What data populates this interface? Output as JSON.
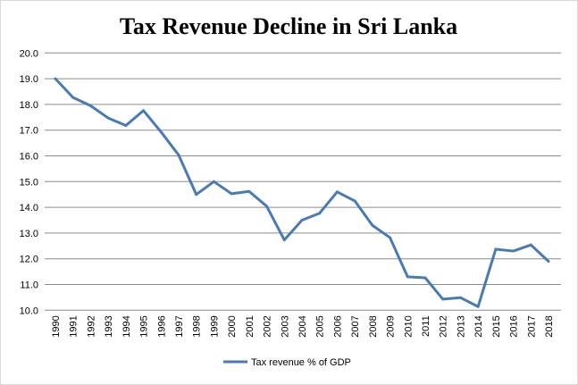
{
  "chart_data": {
    "type": "line",
    "title": "Tax Revenue Decline in Sri Lanka",
    "xlabel": "",
    "ylabel": "",
    "ylim": [
      10.0,
      20.0
    ],
    "ytick_step": 1.0,
    "grid": true,
    "legend_position": "bottom",
    "x": [
      1990,
      1991,
      1992,
      1993,
      1994,
      1995,
      1996,
      1997,
      1998,
      1999,
      2000,
      2001,
      2002,
      2003,
      2004,
      2005,
      2006,
      2007,
      2008,
      2009,
      2010,
      2011,
      2012,
      2013,
      2014,
      2015,
      2016,
      2017,
      2018
    ],
    "series": [
      {
        "name": "Tax revenue % of GDP",
        "color": "#4a7ab5",
        "values": [
          19.0,
          18.27,
          17.95,
          17.47,
          17.18,
          17.76,
          16.93,
          16.03,
          14.5,
          15.0,
          14.53,
          14.62,
          14.04,
          12.73,
          13.5,
          13.77,
          14.6,
          14.25,
          13.3,
          12.82,
          11.3,
          11.26,
          10.43,
          10.49,
          10.14,
          12.37,
          12.3,
          12.54,
          11.9
        ]
      }
    ]
  }
}
